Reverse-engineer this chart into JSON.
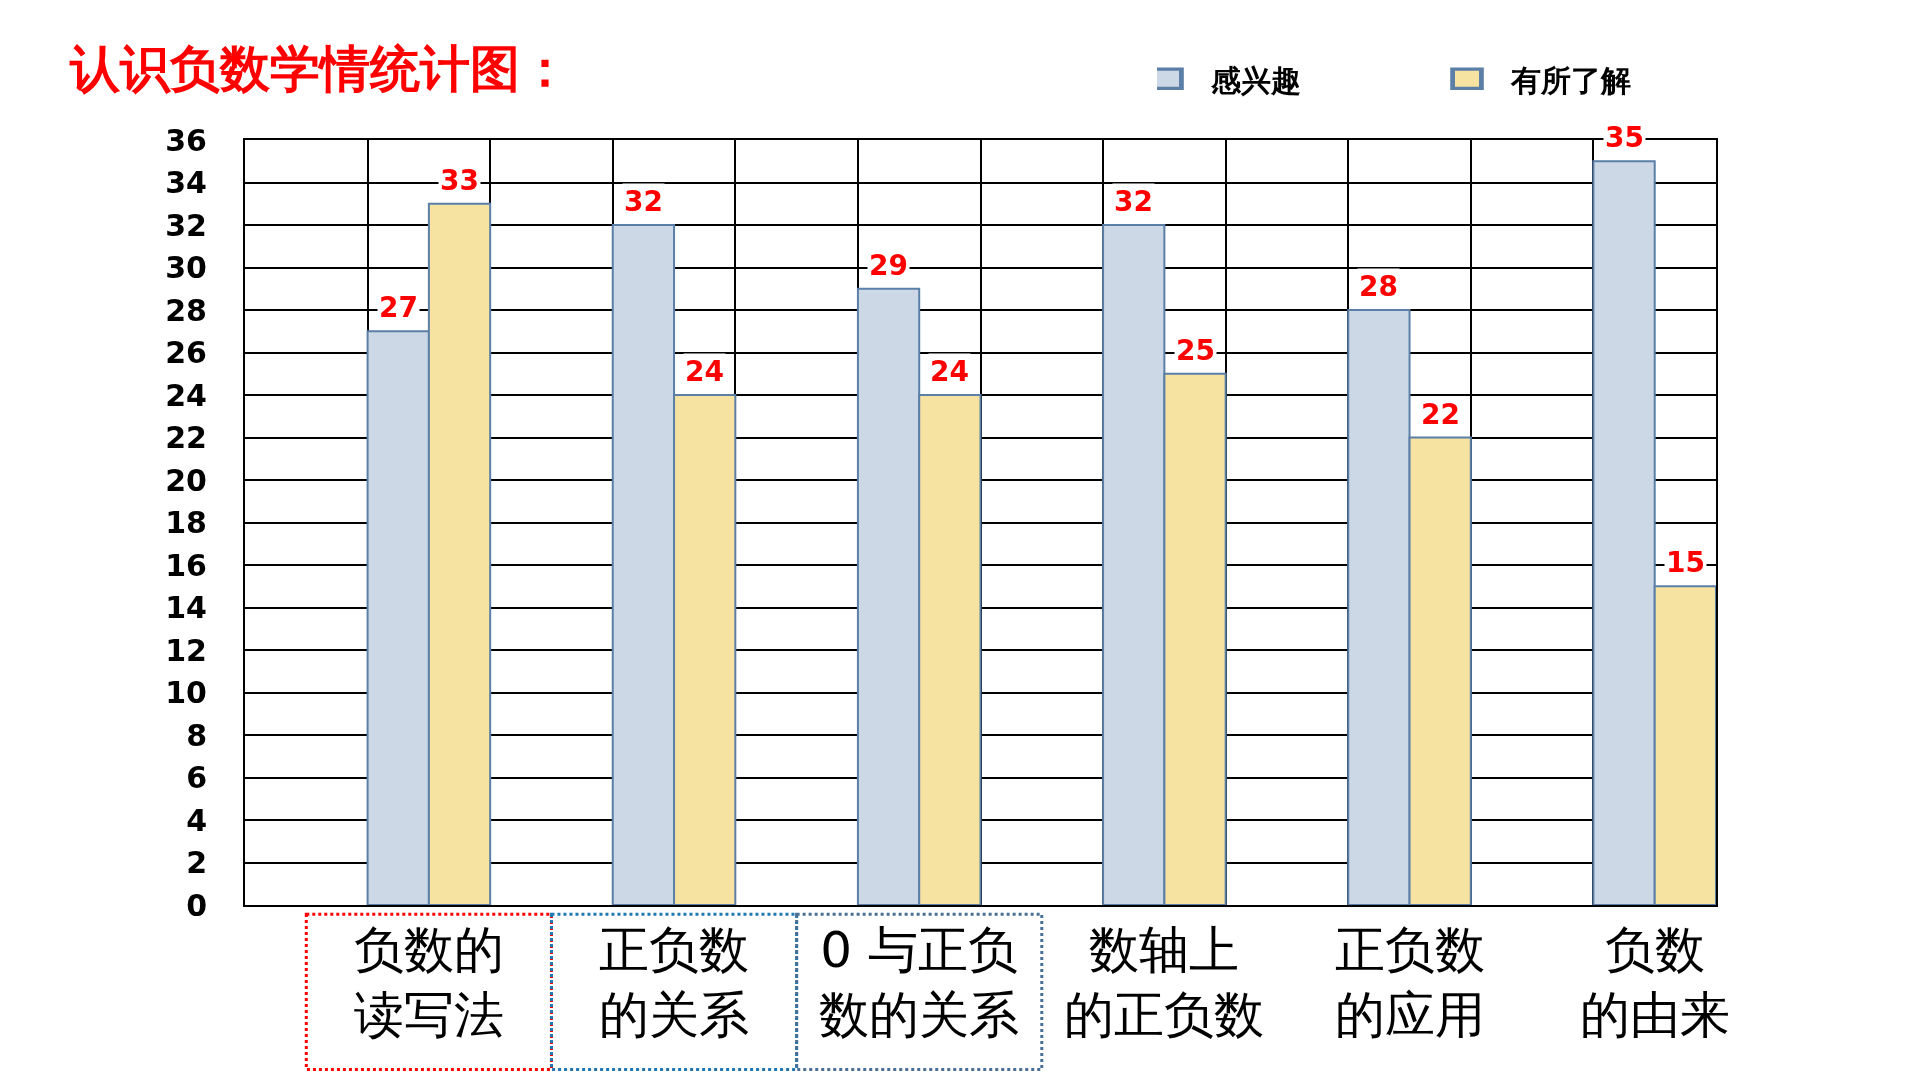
{
  "chart_data": {
    "type": "bar",
    "title": "认识负数学情统计图：",
    "categories": [
      "负数的读写法",
      "正负数的关系",
      "0 与正负数的关系",
      "数轴上的正负数",
      "正负数的应用",
      "负数的由来"
    ],
    "series": [
      {
        "name": "感兴趣",
        "color": "#cdd8e6",
        "values": [
          27,
          32,
          29,
          32,
          28,
          35
        ]
      },
      {
        "name": "有所了解",
        "color": "#f6e3a1",
        "values": [
          33,
          24,
          24,
          25,
          22,
          15
        ]
      }
    ],
    "ylim": [
      0,
      36
    ],
    "yticks": [
      0,
      2,
      4,
      6,
      8,
      10,
      12,
      14,
      16,
      18,
      20,
      22,
      24,
      26,
      28,
      30,
      32,
      34,
      36
    ],
    "grid": true,
    "legend": "top right",
    "data_labels": true
  }
}
